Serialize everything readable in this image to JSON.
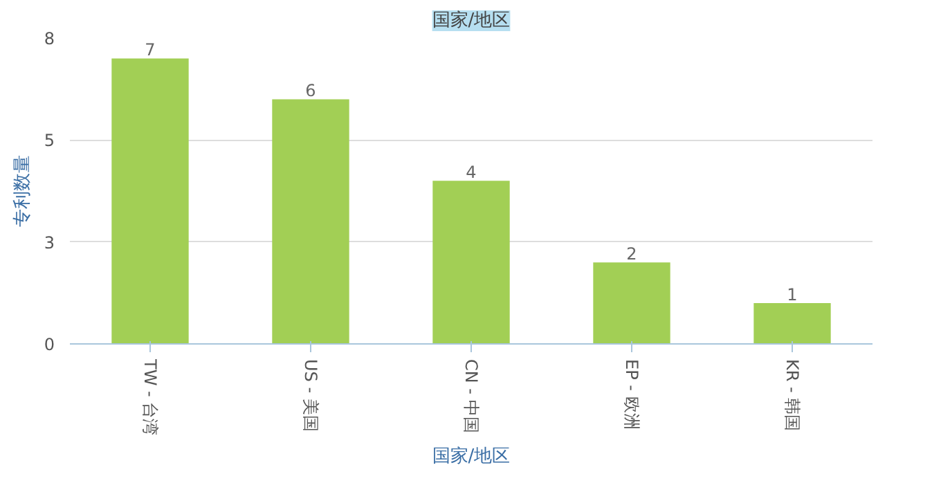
{
  "chart_data": {
    "type": "bar",
    "title": "国家/地区",
    "xlabel": "国家/地区",
    "ylabel": "专利数量",
    "categories": [
      "TW - 台湾",
      "US - 美国",
      "CN - 中国",
      "EP - 欧洲",
      "KR - 韩国"
    ],
    "values": [
      7,
      6,
      4,
      2,
      1
    ],
    "color": "#a2cf55",
    "data_labels": true,
    "ylim": [
      0,
      7.5
    ],
    "yticks": [
      0,
      {
        "value": 2.5,
        "label": "3"
      },
      5,
      {
        "value": 7.5,
        "label": "8"
      }
    ],
    "grid": "y"
  }
}
